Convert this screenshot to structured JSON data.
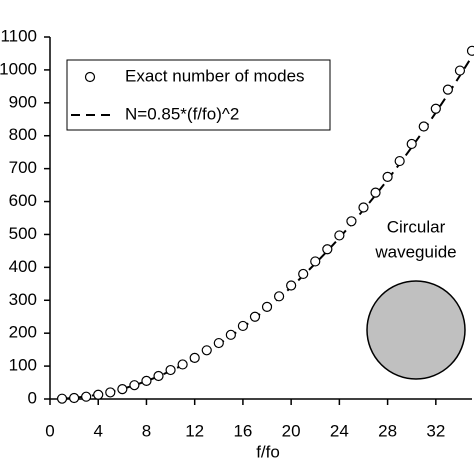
{
  "chart_data": {
    "type": "scatter-line",
    "x_label": "f/fo",
    "annotation": [
      "Circular",
      "waveguide"
    ],
    "x": [
      1,
      2,
      3,
      4,
      5,
      6,
      7,
      8,
      9,
      10,
      11,
      12,
      13,
      14,
      15,
      16,
      17,
      18,
      19,
      20,
      21,
      22,
      23,
      24,
      25,
      26,
      27,
      28,
      29,
      30,
      31,
      32,
      33,
      34,
      35
    ],
    "series": [
      {
        "name": "Exact number of modes",
        "style": "marker",
        "color": "#000000",
        "values": [
          1,
          3,
          7,
          13,
          20,
          30,
          42,
          55,
          70,
          88,
          105,
          125,
          148,
          170,
          195,
          222,
          250,
          280,
          312,
          345,
          380,
          418,
          455,
          497,
          540,
          582,
          627,
          675,
          723,
          775,
          828,
          882,
          940,
          998,
          1058
        ]
      },
      {
        "name": "N=0.85*(f/fo)^2",
        "style": "dashed",
        "color": "#000000",
        "values": [
          0.85,
          3.4,
          7.65,
          13.6,
          21.25,
          30.6,
          41.65,
          54.4,
          68.85,
          85,
          102.85,
          122.4,
          143.65,
          166.6,
          191.25,
          217.6,
          245.65,
          275.4,
          306.85,
          340,
          374.85,
          411.4,
          449.65,
          489.6,
          531.25,
          574.6,
          619.65,
          666.4,
          714.85,
          765,
          816.85,
          870.4,
          925.65,
          982.6,
          1041.25
        ]
      }
    ],
    "xlim": [
      0,
      35
    ],
    "xticks": [
      0,
      4,
      8,
      12,
      16,
      20,
      24,
      28,
      32
    ],
    "ylim": [
      0,
      1100
    ],
    "yticks": [
      0,
      100,
      200,
      300,
      400,
      500,
      600,
      700,
      800,
      900,
      1000,
      1100
    ],
    "grid": false,
    "legend": "top-left"
  }
}
